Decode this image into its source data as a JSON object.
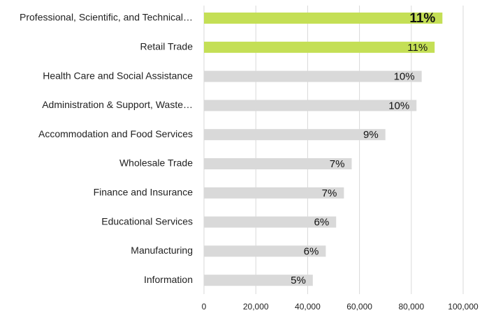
{
  "chart_data": {
    "type": "barh",
    "categories": [
      "Professional, Scientific, and Technical…",
      "Retail Trade",
      "Health Care and Social Assistance",
      "Administration & Support, Waste…",
      "Accommodation and Food Services",
      "Wholesale Trade",
      "Finance and Insurance",
      "Educational Services",
      "Manufacturing",
      "Information"
    ],
    "values": [
      92000,
      89000,
      84000,
      82000,
      70000,
      57000,
      54000,
      51000,
      47000,
      42000
    ],
    "bar_labels": [
      "11%",
      "11%",
      "10%",
      "10%",
      "9%",
      "7%",
      "7%",
      "6%",
      "6%",
      "5%"
    ],
    "colors": [
      "#c4df55",
      "#c4df55",
      "#d9d9d9",
      "#d9d9d9",
      "#d9d9d9",
      "#d9d9d9",
      "#d9d9d9",
      "#d9d9d9",
      "#d9d9d9",
      "#d9d9d9"
    ],
    "bold_label_index": 0,
    "xlim": [
      0,
      100000
    ],
    "xticks": [
      0,
      {
        "value": 20000,
        "label": "20,000"
      },
      {
        "value": 40000,
        "label": "40,000"
      },
      {
        "value": 60000,
        "label": "60,000"
      },
      {
        "value": 80000,
        "label": "80,000"
      },
      {
        "value": 100000,
        "label": "100,000"
      }
    ],
    "grid": true
  }
}
